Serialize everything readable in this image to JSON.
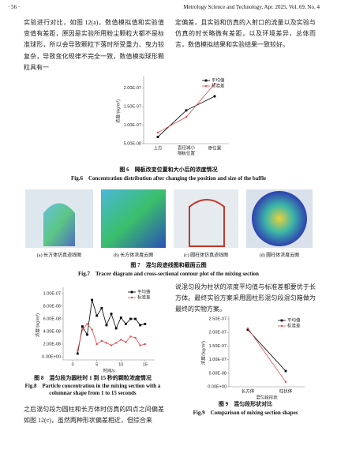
{
  "header": {
    "page": "· 56 ·",
    "journal": "Metrology Science and Technology, Apr. 2025, Vol. 69, No. 4"
  },
  "paragraphs": {
    "top_left": "实验进行对比，如图 12(a)，数值模拟值和实验值变值有差距，原因是实验所用粉尘颗粒大都不是标准球形，所以会导致颗粒下落时所受重力、曳力较复杂，导致变化规律不完全一致，数值模拟球形颗粒具有一",
    "top_right": "定偏差，且实验和仿真的入射口的流量以及实验与仿真的时长略微有差距，以及环境差异，总体而言，数值模拟结果和实验结果一致较好。",
    "bottom_left": "之后混匀段为圆柱和长方体时仿真的四点之间偏差如图 12(c)，虽然两种形状偏差相近，但综合来",
    "bottom_right": "说混匀段为柱状的浓度平均值与标准差都要优于长方体。最终实验方案采用圆柱形混匀段混匀箱做为最终的实物方案。"
  },
  "figures": {
    "fig6": {
      "caption_cn": "图 6　隔板改变位置和大小后的浓度情况",
      "caption_en": "Fig.6　Concentration distribution after changing the position and size of the baffle"
    },
    "fig7": {
      "caption_cn": "图 7　混匀段迹线图和截面云图",
      "caption_en": "Fig.7　Tracer diagram and cross-sectional contour plot of the mixing section",
      "panels": [
        "(a) 长方体仿真迹线图",
        "(b) 长方体浓度云图",
        "(c) 圆柱体仿真迹线图",
        "(d) 圆柱体浓度云图"
      ]
    },
    "fig8": {
      "caption_cn": "图 8　混匀段为圆柱时 1 到 15 秒的颗粒浓度情况",
      "caption_en_1": "Fig.8　Particle concentration in the mixing section with a",
      "caption_en_2": "columnar shape from 1 to 15 seconds"
    },
    "fig9": {
      "caption_cn": "图 9　混匀段形状对比",
      "caption_en": "Fig.9　Comparison of mixing section shapes"
    }
  },
  "chart_data": [
    {
      "type": "line",
      "ylabel": "浓度/(kg/m³)",
      "categories": [
        "上方",
        "直径减小\n隔板位置",
        "原位置"
      ],
      "series": [
        {
          "name": "平均值",
          "color": "#000000",
          "marker": "square",
          "values": [
            6.8e-08,
            1.4e-07,
            1.78e-07
          ]
        },
        {
          "name": "标准差",
          "color": "#e8474e",
          "marker": "circle",
          "values": [
            8e-08,
            1.22e-07,
            2.12e-07
          ]
        }
      ],
      "ylim": [
        5e-08,
        2.25e-07
      ],
      "yticks": [
        {
          "value": 5e-08,
          "label": "5.00E-08"
        },
        {
          "value": 1e-07,
          "label": "1.00E-07"
        },
        {
          "value": 1.5e-07,
          "label": "1.50E-07"
        },
        {
          "value": 2e-07,
          "label": "2.00E-07"
        }
      ],
      "legend": "upper right"
    },
    {
      "type": "line",
      "xlabel": "时间/s",
      "ylabel": "浓度/(kg/m³)",
      "x": [
        1,
        2,
        3,
        4,
        5,
        6,
        7,
        8,
        9,
        10,
        11,
        12,
        13,
        14,
        15
      ],
      "series": [
        {
          "name": "平均值",
          "color": "#000000",
          "marker": "square",
          "values": [
            5e-09,
            4.8e-08,
            3.5e-08,
            9e-08,
            6.5e-08,
            7.7e-08,
            5e-08,
            6.8e-08,
            4.5e-08,
            6.2e-08,
            5.2e-08,
            6e-08,
            6e-08,
            5e-08,
            5.2e-08
          ]
        },
        {
          "name": "标准差",
          "color": "#e8474e",
          "marker": "circle",
          "values": [
            1e-08,
            4.3e-08,
            5.2e-08,
            4.3e-08,
            2e-08,
            2.5e-08,
            2.2e-08,
            1.8e-08,
            2.2e-08,
            2.7e-08,
            2.3e-08,
            3.2e-08,
            3e-08,
            1.8e-08,
            2e-08
          ]
        }
      ],
      "xlim": [
        -2,
        17
      ],
      "xticks": [
        0,
        5,
        10,
        15
      ],
      "ylim": [
        -5e-09,
        1.05e-07
      ],
      "yticks": [
        {
          "value": 0,
          "label": "0.00E+00"
        },
        {
          "value": 2e-08,
          "label": "2.00E-08"
        },
        {
          "value": 4e-08,
          "label": "4.00E-08"
        },
        {
          "value": 6e-08,
          "label": "6.00E-08"
        },
        {
          "value": 8e-08,
          "label": "8.00E-08"
        },
        {
          "value": 1e-07,
          "label": "1.00E-07"
        }
      ],
      "legend": "upper right"
    },
    {
      "type": "line",
      "xlabel": "混匀段形状",
      "ylabel": "浓度/(kg/m³)",
      "categories": [
        "长方体",
        "柱状体"
      ],
      "series": [
        {
          "name": "平均值",
          "color": "#000000",
          "marker": "square",
          "values": [
            2.1e-07,
            5.8e-08
          ]
        },
        {
          "name": "标准差",
          "color": "#e8474e",
          "marker": "circle",
          "values": [
            2.15e-07,
            1.8e-08
          ]
        }
      ],
      "ylim": [
        0,
        2.5e-07
      ],
      "yticks": [
        {
          "value": 0,
          "label": "0.00E+00"
        },
        {
          "value": 5e-08,
          "label": "5.00E-08"
        },
        {
          "value": 1e-07,
          "label": "1.00E-07"
        },
        {
          "value": 1.5e-07,
          "label": "1.50E-07"
        },
        {
          "value": 2e-07,
          "label": "2.00E-07"
        },
        {
          "value": 2.5e-07,
          "label": "2.50E-07"
        }
      ],
      "legend": "upper right"
    }
  ]
}
